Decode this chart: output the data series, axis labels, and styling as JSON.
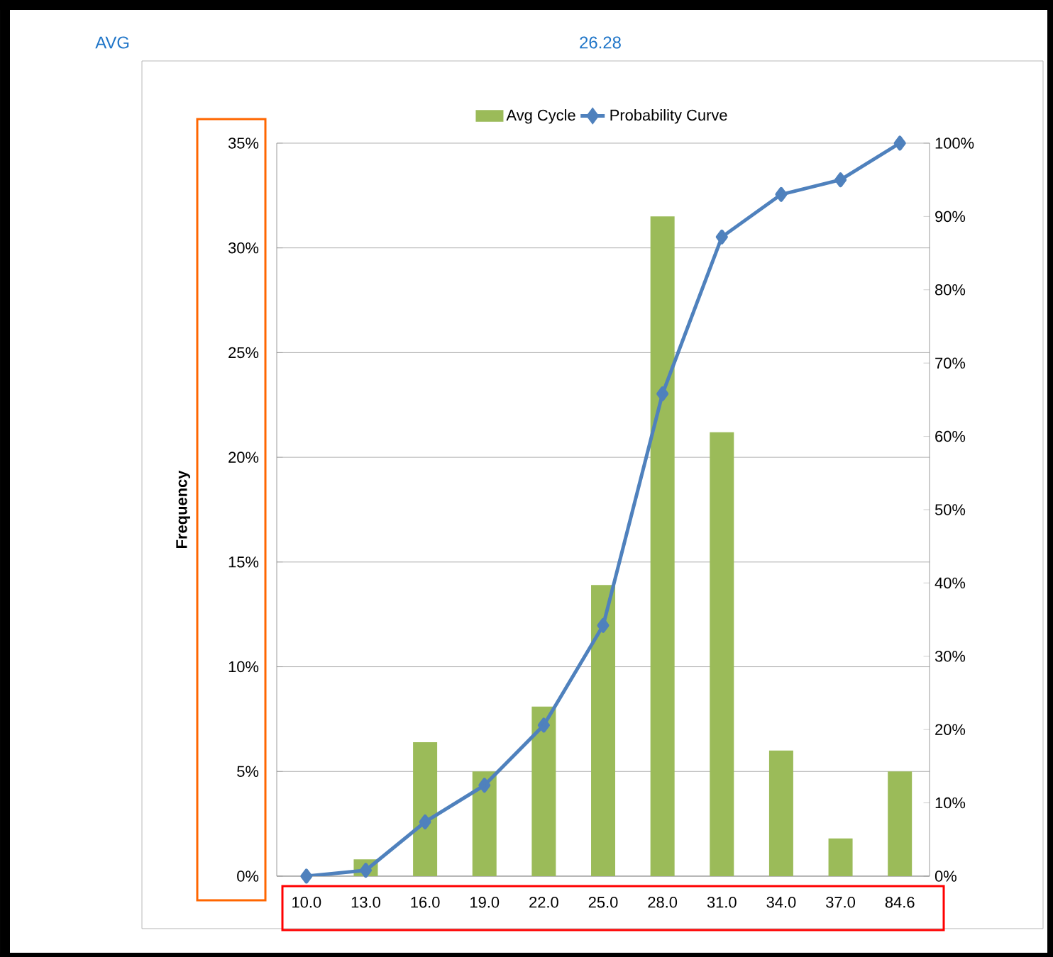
{
  "chart_data": {
    "type": "bar",
    "ylabel": "Frequency",
    "annotations": [
      "AVG",
      "26.28"
    ],
    "categories": [
      "10.0",
      "13.0",
      "16.0",
      "19.0",
      "22.0",
      "25.0",
      "28.0",
      "31.0",
      "34.0",
      "37.0",
      "84.6"
    ],
    "series": [
      {
        "name": "Avg Cycle",
        "color": "#9bbb59",
        "values": [
          0,
          0.8,
          6.4,
          5.0,
          8.1,
          13.9,
          31.5,
          21.2,
          6.0,
          1.8,
          5.0
        ]
      },
      {
        "name": "Probability Curve",
        "type": "line",
        "axis": "y2",
        "color": "#4f81bd",
        "marker": "diamond",
        "values": [
          0,
          0.8,
          7.4,
          12.4,
          20.6,
          34.2,
          65.8,
          87.2,
          93.0,
          95.0,
          100
        ]
      }
    ],
    "ylim": [
      0,
      35
    ],
    "yticks": [
      {
        "value": 0,
        "label": "0%"
      },
      {
        "value": 5,
        "label": "5%"
      },
      {
        "value": 10,
        "label": "10%"
      },
      {
        "value": 15,
        "label": "15%"
      },
      {
        "value": 20,
        "label": "20%"
      },
      {
        "value": 25,
        "label": "25%"
      },
      {
        "value": 30,
        "label": "30%"
      },
      {
        "value": 35,
        "label": "35%"
      }
    ],
    "y2lim": [
      0,
      100
    ],
    "y2ticks": [
      {
        "value": 0,
        "label": "0%"
      },
      {
        "value": 10,
        "label": "10%"
      },
      {
        "value": 20,
        "label": "20%"
      },
      {
        "value": 30,
        "label": "30%"
      },
      {
        "value": 40,
        "label": "40%"
      },
      {
        "value": 50,
        "label": "50%"
      },
      {
        "value": 60,
        "label": "60%"
      },
      {
        "value": 70,
        "label": "70%"
      },
      {
        "value": 80,
        "label": "80%"
      },
      {
        "value": 90,
        "label": "90%"
      },
      {
        "value": 100,
        "label": "100%"
      }
    ],
    "grid": "y",
    "legend": "top"
  }
}
